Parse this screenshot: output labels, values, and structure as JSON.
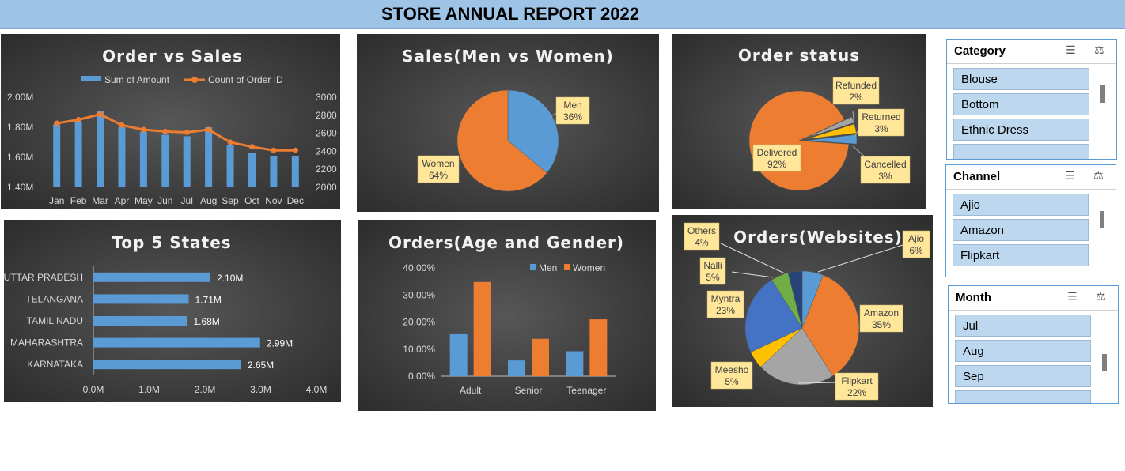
{
  "report": {
    "title": "STORE ANNUAL REPORT 2022"
  },
  "chart_data": [
    {
      "id": "order_vs_sales",
      "type": "bar",
      "title": "Order vs Sales",
      "categories": [
        "Jan",
        "Feb",
        "Mar",
        "Apr",
        "May",
        "Jun",
        "Jul",
        "Aug",
        "Sep",
        "Oct",
        "Nov",
        "Dec"
      ],
      "series": [
        {
          "name": "Sum of Amount",
          "type": "bar",
          "axis": "left",
          "values": [
            1.82,
            1.84,
            1.91,
            1.8,
            1.77,
            1.75,
            1.74,
            1.8,
            1.68,
            1.63,
            1.61,
            1.61
          ]
        },
        {
          "name": "Count of Order ID",
          "type": "line",
          "axis": "right",
          "values": [
            2710,
            2750,
            2810,
            2690,
            2640,
            2620,
            2610,
            2640,
            2500,
            2450,
            2410,
            2410
          ]
        }
      ],
      "y_left_ticks": [
        "2.00M",
        "1.80M",
        "1.60M",
        "1.40M"
      ],
      "ylim_left": [
        1.4,
        2.0
      ],
      "y_right_ticks": [
        "3000",
        "2800",
        "2600",
        "2400",
        "2200",
        "2000"
      ],
      "ylim_right": [
        2000,
        3000
      ],
      "legend": "top"
    },
    {
      "id": "sales_gender",
      "type": "pie",
      "title": "Sales(Men vs Women)",
      "slices": [
        {
          "name": "Men",
          "value": 36,
          "label": "36%",
          "color": "#5b9bd5"
        },
        {
          "name": "Women",
          "value": 64,
          "label": "64%",
          "color": "#ed7d31"
        }
      ]
    },
    {
      "id": "order_status",
      "type": "pie",
      "title": "Order status",
      "slices": [
        {
          "name": "Delivered",
          "value": 92,
          "label": "92%",
          "color": "#ed7d31"
        },
        {
          "name": "Refunded",
          "value": 2,
          "label": "2%",
          "color": "#a5a5a5"
        },
        {
          "name": "Returned",
          "value": 3,
          "label": "3%",
          "color": "#ffc000"
        },
        {
          "name": "Cancelled",
          "value": 3,
          "label": "3%",
          "color": "#5b9bd5"
        }
      ]
    },
    {
      "id": "top5_states",
      "type": "bar",
      "orientation": "horizontal",
      "title": "Top 5 States",
      "categories": [
        "UTTAR PRADESH",
        "TELANGANA",
        "TAMIL NADU",
        "MAHARASHTRA",
        "KARNATAKA"
      ],
      "values": [
        2.1,
        1.71,
        1.68,
        2.99,
        2.65
      ],
      "value_labels": [
        "2.10M",
        "1.71M",
        "1.68M",
        "2.99M",
        "2.65M"
      ],
      "x_ticks": [
        "0.0M",
        "1.0M",
        "2.0M",
        "3.0M",
        "4.0M"
      ],
      "xlim": [
        0,
        4
      ]
    },
    {
      "id": "orders_age_gender",
      "type": "bar",
      "title": "Orders(Age and Gender)",
      "categories": [
        "Adult",
        "Senior",
        "Teenager"
      ],
      "series": [
        {
          "name": "Men",
          "values": [
            15.5,
            5.8,
            9.2
          ],
          "color": "#5b9bd5"
        },
        {
          "name": "Women",
          "values": [
            34.8,
            13.8,
            21.0
          ],
          "color": "#ed7d31"
        }
      ],
      "y_ticks": [
        "40.00%",
        "30.00%",
        "20.00%",
        "10.00%",
        "0.00%"
      ],
      "ylim": [
        0,
        40
      ],
      "legend": "top-right"
    },
    {
      "id": "orders_websites",
      "type": "pie",
      "title": "Orders(Websites)",
      "slices": [
        {
          "name": "Ajio",
          "value": 6,
          "label": "6%",
          "color": "#5b9bd5"
        },
        {
          "name": "Amazon",
          "value": 35,
          "label": "35%",
          "color": "#ed7d31"
        },
        {
          "name": "Flipkart",
          "value": 22,
          "label": "22%",
          "color": "#a5a5a5"
        },
        {
          "name": "Meesho",
          "value": 5,
          "label": "5%",
          "color": "#ffc000"
        },
        {
          "name": "Myntra",
          "value": 23,
          "label": "23%",
          "color": "#4472c4"
        },
        {
          "name": "Nalli",
          "value": 5,
          "label": "5%",
          "color": "#70ad47"
        },
        {
          "name": "Others",
          "value": 4,
          "label": "4%",
          "color": "#264478"
        }
      ]
    }
  ],
  "slicers": {
    "category": {
      "title": "Category",
      "items": [
        "Blouse",
        "Bottom",
        "Ethnic Dress"
      ]
    },
    "channel": {
      "title": "Channel",
      "items": [
        "Ajio",
        "Amazon",
        "Flipkart"
      ]
    },
    "month": {
      "title": "Month",
      "items": [
        "Jul",
        "Aug",
        "Sep"
      ]
    }
  },
  "icons": {
    "multiselect": "multi-select-icon",
    "clearfilter": "clear-filter-icon"
  }
}
